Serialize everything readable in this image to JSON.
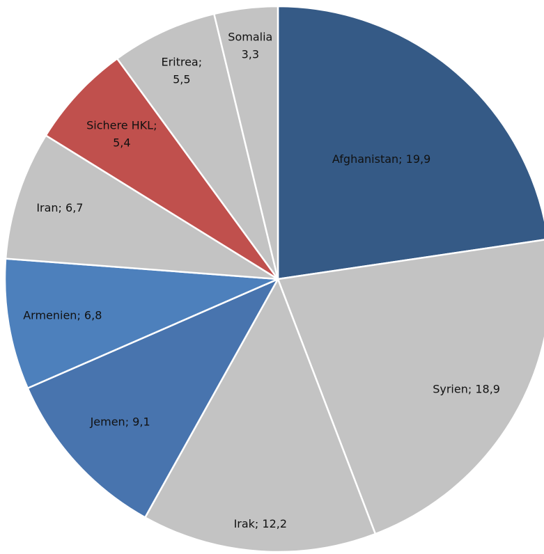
{
  "chart_data": {
    "type": "pie",
    "title": "",
    "categories": [
      "Afghanistan",
      "Syrien",
      "Irak",
      "Jemen",
      "Armenien",
      "Iran",
      "Sichere HKL",
      "Eritrea",
      "Somalia"
    ],
    "values": [
      19.9,
      18.9,
      12.2,
      9.1,
      6.8,
      6.7,
      5.4,
      5.5,
      3.3
    ],
    "labels": [
      [
        "Afghanistan; 19,9"
      ],
      [
        "Syrien; 18,9"
      ],
      [
        "Irak; 12,2"
      ],
      [
        "Jemen; 9,1"
      ],
      [
        "Armenien; 6,8"
      ],
      [
        "Iran; 6,7"
      ],
      [
        "Sichere HKL;",
        "5,4"
      ],
      [
        "Eritrea;",
        "5,5"
      ],
      [
        "Somalia",
        "3,3"
      ]
    ],
    "colors": [
      "#355A86",
      "#C3C3C3",
      "#C3C3C3",
      "#4874AE",
      "#4D80BC",
      "#C3C3C3",
      "#C0504D",
      "#C3C3C3",
      "#C3C3C3"
    ],
    "start_direction": "top",
    "order": "clockwise",
    "legend": "none"
  }
}
